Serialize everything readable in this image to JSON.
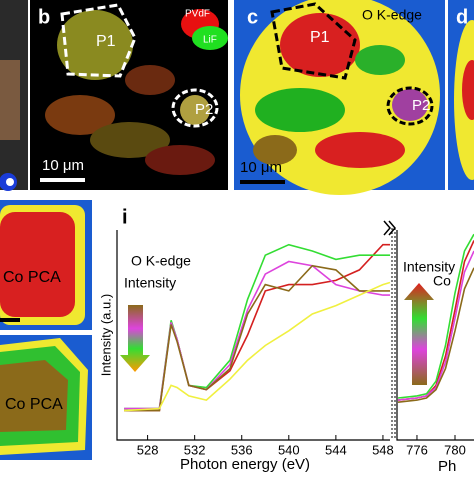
{
  "panels": {
    "b": {
      "label": "b",
      "legend": [
        "PVdF",
        "LiF"
      ],
      "regions": [
        "P1",
        "P2"
      ],
      "scale_bar": "10 μm"
    },
    "c": {
      "label": "c",
      "title": "O K-edge",
      "regions": [
        "P1",
        "P2"
      ],
      "scale_bar": "10 μm"
    },
    "d": {
      "label": "d"
    },
    "h": {
      "texts": [
        "Co PCA",
        "Co PCA"
      ]
    }
  },
  "chart_data": [
    {
      "type": "line",
      "label": "i",
      "annotation": "O K-edge",
      "arrow_label": "Intensity",
      "ylabel": "Intensity (a.u.)",
      "xlabel": "Photon energy (eV)",
      "x": [
        526,
        529,
        530,
        530.5,
        531.5,
        533,
        535,
        536.5,
        538,
        540,
        542,
        544,
        546,
        548,
        548.6
      ],
      "xlim": [
        525.4,
        548.6
      ],
      "xticks": [
        528,
        532,
        536,
        540,
        544,
        548
      ],
      "ylim": [
        0,
        1
      ],
      "series": [
        {
          "color": "#d42020",
          "values": [
            0.14,
            0.14,
            0.56,
            0.48,
            0.26,
            0.24,
            0.33,
            0.5,
            0.71,
            0.74,
            0.74,
            0.76,
            0.81,
            0.93,
            0.93
          ]
        },
        {
          "color": "#33dd33",
          "values": [
            0.15,
            0.15,
            0.57,
            0.48,
            0.26,
            0.25,
            0.38,
            0.67,
            0.88,
            0.93,
            0.9,
            0.86,
            0.88,
            0.88,
            0.88
          ]
        },
        {
          "color": "#dd44dd",
          "values": [
            0.15,
            0.15,
            0.56,
            0.48,
            0.26,
            0.24,
            0.36,
            0.62,
            0.79,
            0.85,
            0.83,
            0.74,
            0.71,
            0.69,
            0.69
          ]
        },
        {
          "color": "#8b6a1a",
          "values": [
            0.14,
            0.14,
            0.55,
            0.47,
            0.26,
            0.24,
            0.34,
            0.6,
            0.74,
            0.71,
            0.83,
            0.81,
            0.71,
            0.71,
            0.71
          ]
        },
        {
          "color": "#f0f040",
          "values": [
            0.14,
            0.15,
            0.26,
            0.25,
            0.21,
            0.19,
            0.29,
            0.38,
            0.45,
            0.52,
            0.6,
            0.64,
            0.69,
            0.74,
            0.75
          ]
        }
      ]
    },
    {
      "type": "line",
      "annotation": "Co",
      "arrow_label": "Intensity",
      "xlabel": "Ph",
      "x": [
        774,
        776,
        777,
        778,
        779,
        780,
        781,
        782
      ],
      "xlim": [
        773.9,
        782
      ],
      "xticks": [
        776,
        780
      ],
      "ylim": [
        0,
        1
      ],
      "series": [
        {
          "color": "#d42020",
          "values": [
            0.19,
            0.2,
            0.21,
            0.26,
            0.4,
            0.62,
            0.85,
            0.95
          ]
        },
        {
          "color": "#33dd33",
          "values": [
            0.2,
            0.21,
            0.22,
            0.28,
            0.45,
            0.7,
            0.9,
            0.98
          ]
        },
        {
          "color": "#dd44dd",
          "values": [
            0.19,
            0.2,
            0.21,
            0.25,
            0.37,
            0.58,
            0.8,
            0.9
          ]
        },
        {
          "color": "#8b6a1a",
          "values": [
            0.18,
            0.19,
            0.2,
            0.24,
            0.34,
            0.52,
            0.72,
            0.82
          ]
        }
      ]
    }
  ]
}
